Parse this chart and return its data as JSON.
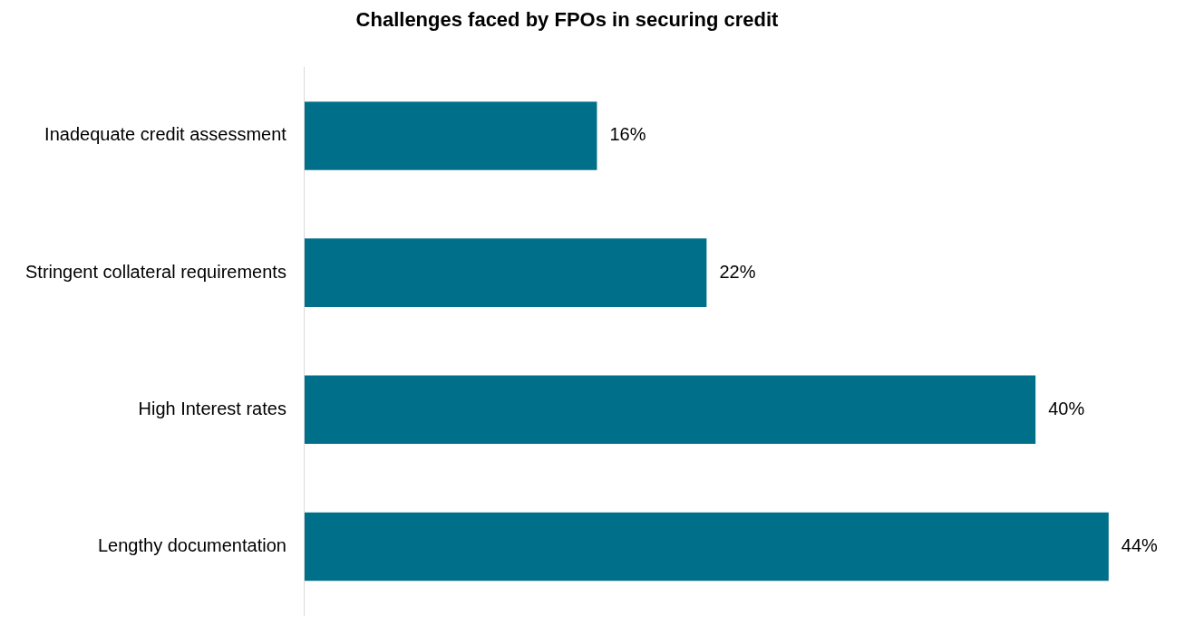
{
  "chart_data": {
    "type": "bar",
    "orientation": "horizontal",
    "title": "Challenges faced by FPOs in securing credit",
    "categories": [
      "Inadequate credit assessment",
      "Stringent collateral requirements",
      "High Interest rates",
      "Lengthy documentation"
    ],
    "values": [
      16,
      22,
      40,
      44
    ],
    "value_labels": [
      "16%",
      "22%",
      "40%",
      "44%"
    ],
    "color": "#006f89"
  }
}
